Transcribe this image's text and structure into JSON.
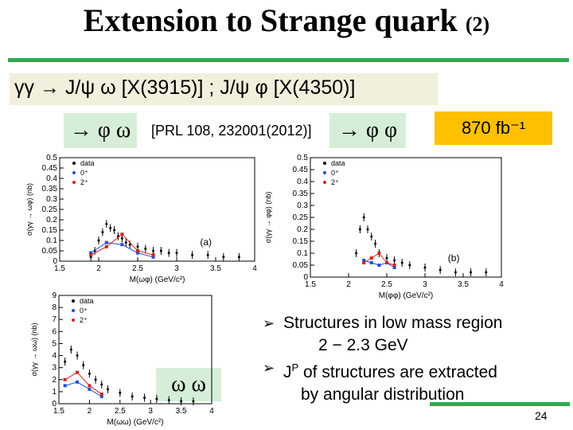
{
  "slide": {
    "title_main": "Extension to Strange quark",
    "title_suffix": "(2)",
    "subtitle": "γγ → J/ψ ω [X(3915)] ; J/ψ φ [X(4350)]",
    "label_phi_omega": "→ φ ω",
    "label_phi_phi": "→ φ φ",
    "label_omega_omega": "ω ω",
    "reference": "[PRL 108, 232001(2012)]",
    "luminosity": "870 fb⁻¹",
    "bullets": [
      {
        "line1": "Structures in low mass region",
        "line2": "2 − 2.3 GeV"
      },
      {
        "line1": "J",
        "sup": "P",
        "line1b": " of structures are extracted",
        "line2": "by angular distribution"
      }
    ],
    "page_number": "24",
    "colors": {
      "accent_green": "#32a852",
      "lum_orange": "#ffc000",
      "label_green": "#d6eed8",
      "subtitle_band": "#f2f0dc"
    }
  },
  "chart_data": [
    {
      "type": "scatter",
      "name": "phi-omega",
      "xlabel": "M(ωφ) (GeV/c²)",
      "ylabel": "σ(γγ → ωφ) (nb)",
      "xticks": [
        "1.5",
        "2",
        "2.5",
        "3",
        "3.5",
        "4"
      ],
      "yticks": [
        "0",
        "0.05",
        "0.1",
        "0.15",
        "0.2",
        "0.25",
        "0.3",
        "0.35",
        "0.4",
        "0.45",
        "0.5"
      ],
      "xlim": [
        1.5,
        4.0
      ],
      "ylim": [
        0,
        0.5
      ],
      "legend": [
        "data",
        "0⁺",
        "2⁺"
      ],
      "panel_tag": "(a)",
      "series": [
        {
          "name": "data",
          "x": [
            1.9,
            1.95,
            2.0,
            2.05,
            2.1,
            2.15,
            2.2,
            2.25,
            2.3,
            2.35,
            2.4,
            2.5,
            2.6,
            2.7,
            2.8,
            2.9,
            3.0,
            3.2,
            3.4,
            3.6,
            3.8
          ],
          "y": [
            0.02,
            0.05,
            0.1,
            0.14,
            0.18,
            0.16,
            0.15,
            0.12,
            0.11,
            0.09,
            0.08,
            0.07,
            0.06,
            0.05,
            0.05,
            0.04,
            0.04,
            0.03,
            0.03,
            0.02,
            0.02
          ]
        },
        {
          "name": "0⁺",
          "x": [
            1.9,
            2.1,
            2.3,
            2.5,
            2.7
          ],
          "y": [
            0.04,
            0.09,
            0.08,
            0.04,
            0.02
          ]
        },
        {
          "name": "2⁺",
          "x": [
            1.9,
            2.1,
            2.3,
            2.5,
            2.7
          ],
          "y": [
            0.03,
            0.07,
            0.13,
            0.05,
            0.03
          ]
        }
      ]
    },
    {
      "type": "scatter",
      "name": "phi-phi",
      "xlabel": "M(φφ) (GeV/c²)",
      "ylabel": "σ(γγ → φφ) (nb)",
      "xticks": [
        "1.5",
        "2",
        "2.5",
        "3",
        "3.5",
        "4"
      ],
      "yticks": [
        "0",
        "0.05",
        "0.1",
        "0.15",
        "0.2",
        "0.25",
        "0.3",
        "0.35",
        "0.4",
        "0.45",
        "0.5"
      ],
      "xlim": [
        1.5,
        4.0
      ],
      "ylim": [
        0,
        0.5
      ],
      "legend": [
        "data",
        "0⁺",
        "2⁺"
      ],
      "panel_tag": "(b)",
      "series": [
        {
          "name": "data",
          "x": [
            2.1,
            2.15,
            2.2,
            2.25,
            2.3,
            2.35,
            2.4,
            2.5,
            2.6,
            2.7,
            2.8,
            3.0,
            3.2,
            3.4,
            3.6,
            3.8
          ],
          "y": [
            0.1,
            0.2,
            0.25,
            0.2,
            0.17,
            0.14,
            0.1,
            0.08,
            0.07,
            0.06,
            0.05,
            0.04,
            0.03,
            0.02,
            0.02,
            0.02
          ]
        },
        {
          "name": "0⁺",
          "x": [
            2.2,
            2.3,
            2.4,
            2.5,
            2.6
          ],
          "y": [
            0.07,
            0.06,
            0.05,
            0.06,
            0.04
          ]
        },
        {
          "name": "2⁺",
          "x": [
            2.2,
            2.3,
            2.4,
            2.5,
            2.6
          ],
          "y": [
            0.06,
            0.08,
            0.1,
            0.06,
            0.05
          ]
        }
      ]
    },
    {
      "type": "scatter",
      "name": "omega-omega",
      "xlabel": "M(ωω) (GeV/c²)",
      "ylabel": "σ(γγ → ωω) (nb)",
      "xticks": [
        "1.5",
        "2",
        "2.5",
        "3",
        "3.5",
        "4"
      ],
      "yticks": [
        "0",
        "1",
        "2",
        "3",
        "4",
        "5",
        "6",
        "7",
        "8",
        "9"
      ],
      "xlim": [
        1.5,
        4.0
      ],
      "ylim": [
        0,
        9
      ],
      "legend": [
        "data",
        "0⁺",
        "2⁺"
      ],
      "series": [
        {
          "name": "data",
          "x": [
            1.6,
            1.7,
            1.8,
            1.9,
            2.0,
            2.1,
            2.2,
            2.3,
            2.5,
            2.7,
            2.9,
            3.1,
            3.3,
            3.5,
            3.7
          ],
          "y": [
            3.5,
            4.5,
            4.0,
            3.2,
            2.5,
            2.0,
            1.6,
            1.2,
            0.9,
            0.6,
            0.5,
            0.4,
            0.3,
            0.2,
            0.2
          ]
        },
        {
          "name": "0⁺",
          "x": [
            1.6,
            1.8,
            2.0,
            2.2
          ],
          "y": [
            1.5,
            1.8,
            1.2,
            0.6
          ]
        },
        {
          "name": "2⁺",
          "x": [
            1.6,
            1.8,
            2.0,
            2.2
          ],
          "y": [
            2.0,
            2.6,
            1.5,
            0.8
          ]
        }
      ]
    }
  ]
}
